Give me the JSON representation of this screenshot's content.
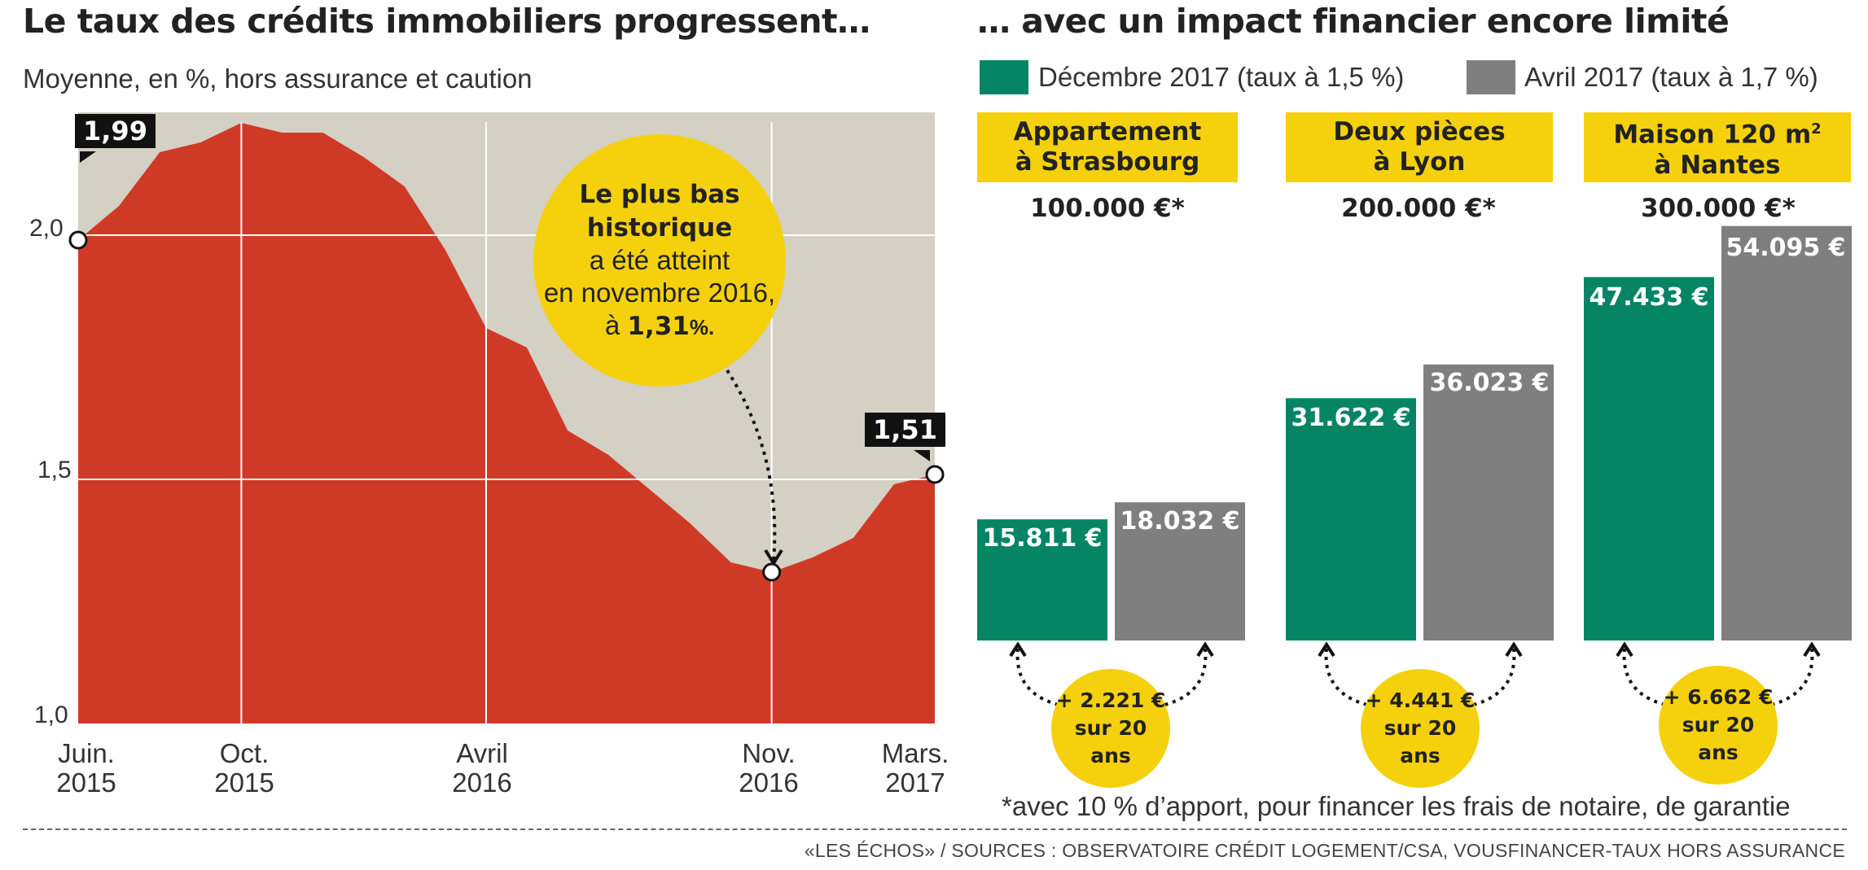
{
  "left": {
    "title": "Le taux des crédits immobiliers progressent…",
    "subtitle": "Moyenne, en %, hors assurance et caution",
    "y_ticks": [
      "2,0",
      "1,5",
      "1,0"
    ],
    "x_ticks": [
      {
        "line1": "Juin.",
        "line2": "2015"
      },
      {
        "line1": "Oct.",
        "line2": "2015"
      },
      {
        "line1": "Avril",
        "line2": "2016"
      },
      {
        "line1": "Nov.",
        "line2": "2016"
      },
      {
        "line1": "Mars.",
        "line2": "2017"
      }
    ],
    "start_label": "1,99",
    "end_label": "1,51",
    "callout": {
      "line1": "Le plus bas",
      "line2": "historique",
      "line3": "a été atteint",
      "line4": "en novembre 2016,",
      "line5_pre": "à ",
      "line5_value": "1,31",
      "line5_unit": "%."
    }
  },
  "right": {
    "title": "… avec un impact financier encore limité",
    "legend": [
      {
        "label": "Décembre 2017 (taux à 1,5 %)",
        "color": "#068565"
      },
      {
        "label": "Avril 2017 (taux à 1,7 %)",
        "color": "#7f7f7f"
      }
    ],
    "groups": [
      {
        "name1": "Appartement",
        "name2": "à Strasbourg",
        "name_sup": "",
        "price": "100.000 €*",
        "dec_label": "15.811 €",
        "apr_label": "18.032 €",
        "diff1": "+ 2.221 €",
        "diff2": "sur 20 ans"
      },
      {
        "name1": "Deux pièces",
        "name2": "à Lyon",
        "name_sup": "",
        "price": "200.000 €*",
        "dec_label": "31.622 €",
        "apr_label": "36.023 €",
        "diff1": "+ 4.441 €",
        "diff2": "sur 20 ans"
      },
      {
        "name1": "Maison 120 m",
        "name2": "à Nantes",
        "name_sup": "2",
        "price": "300.000 €*",
        "dec_label": "47.433 €",
        "apr_label": "54.095 €",
        "diff1": "+ 6.662 €",
        "diff2": "sur 20 ans"
      }
    ],
    "footnote": "*avec 10 % d’apport, pour financer les frais de notaire, de garantie"
  },
  "source": "«LES ÉCHOS»  / SOURCES : OBSERVATOIRE CRÉDIT LOGEMENT/CSA, VOUSFINANCER-TAUX HORS ASSURANCE",
  "colors": {
    "red": "#cf3a27",
    "grey_bg": "#d4d0c4",
    "green": "#068565",
    "grey_bar": "#7f7f7f",
    "yellow": "#f5d10d"
  },
  "chart_data": [
    {
      "type": "area",
      "title": "Le taux des crédits immobiliers progressent…",
      "subtitle": "Moyenne, en %, hors assurance et caution",
      "xlabel": "",
      "ylabel": "%",
      "ylim": [
        1.0,
        2.25
      ],
      "x": [
        "Juin 2015",
        "Juil 2015",
        "Août 2015",
        "Sept 2015",
        "Oct 2015",
        "Nov 2015",
        "Déc 2015",
        "Jan 2016",
        "Fév 2016",
        "Mars 2016",
        "Avril 2016",
        "Mai 2016",
        "Juin 2016",
        "Juil 2016",
        "Août 2016",
        "Sept 2016",
        "Oct 2016",
        "Nov 2016",
        "Déc 2016",
        "Jan 2017",
        "Fév 2017",
        "Mars 2017"
      ],
      "values": [
        1.99,
        2.06,
        2.17,
        2.19,
        2.23,
        2.21,
        2.21,
        2.16,
        2.1,
        1.97,
        1.81,
        1.77,
        1.6,
        1.55,
        1.48,
        1.41,
        1.33,
        1.31,
        1.34,
        1.38,
        1.49,
        1.51
      ],
      "grid": true,
      "annotations": [
        "1,99",
        "1,51",
        "Le plus bas historique a été atteint en novembre 2016, à 1,31 %."
      ]
    },
    {
      "type": "bar",
      "title": "… avec un impact financier encore limité",
      "categories": [
        "Appartement à Strasbourg (100.000 €)",
        "Deux pièces à Lyon (200.000 €)",
        "Maison 120 m² à Nantes (300.000 €)"
      ],
      "series": [
        {
          "name": "Décembre 2017 (taux à 1,5 %)",
          "values": [
            15811,
            31622,
            47433
          ]
        },
        {
          "name": "Avril 2017 (taux à 1,7 %)",
          "values": [
            18032,
            36023,
            54095
          ]
        }
      ],
      "differences": [
        2221,
        4441,
        6662
      ],
      "ylim": [
        0,
        60000
      ],
      "grid": false,
      "legend": "top"
    }
  ]
}
